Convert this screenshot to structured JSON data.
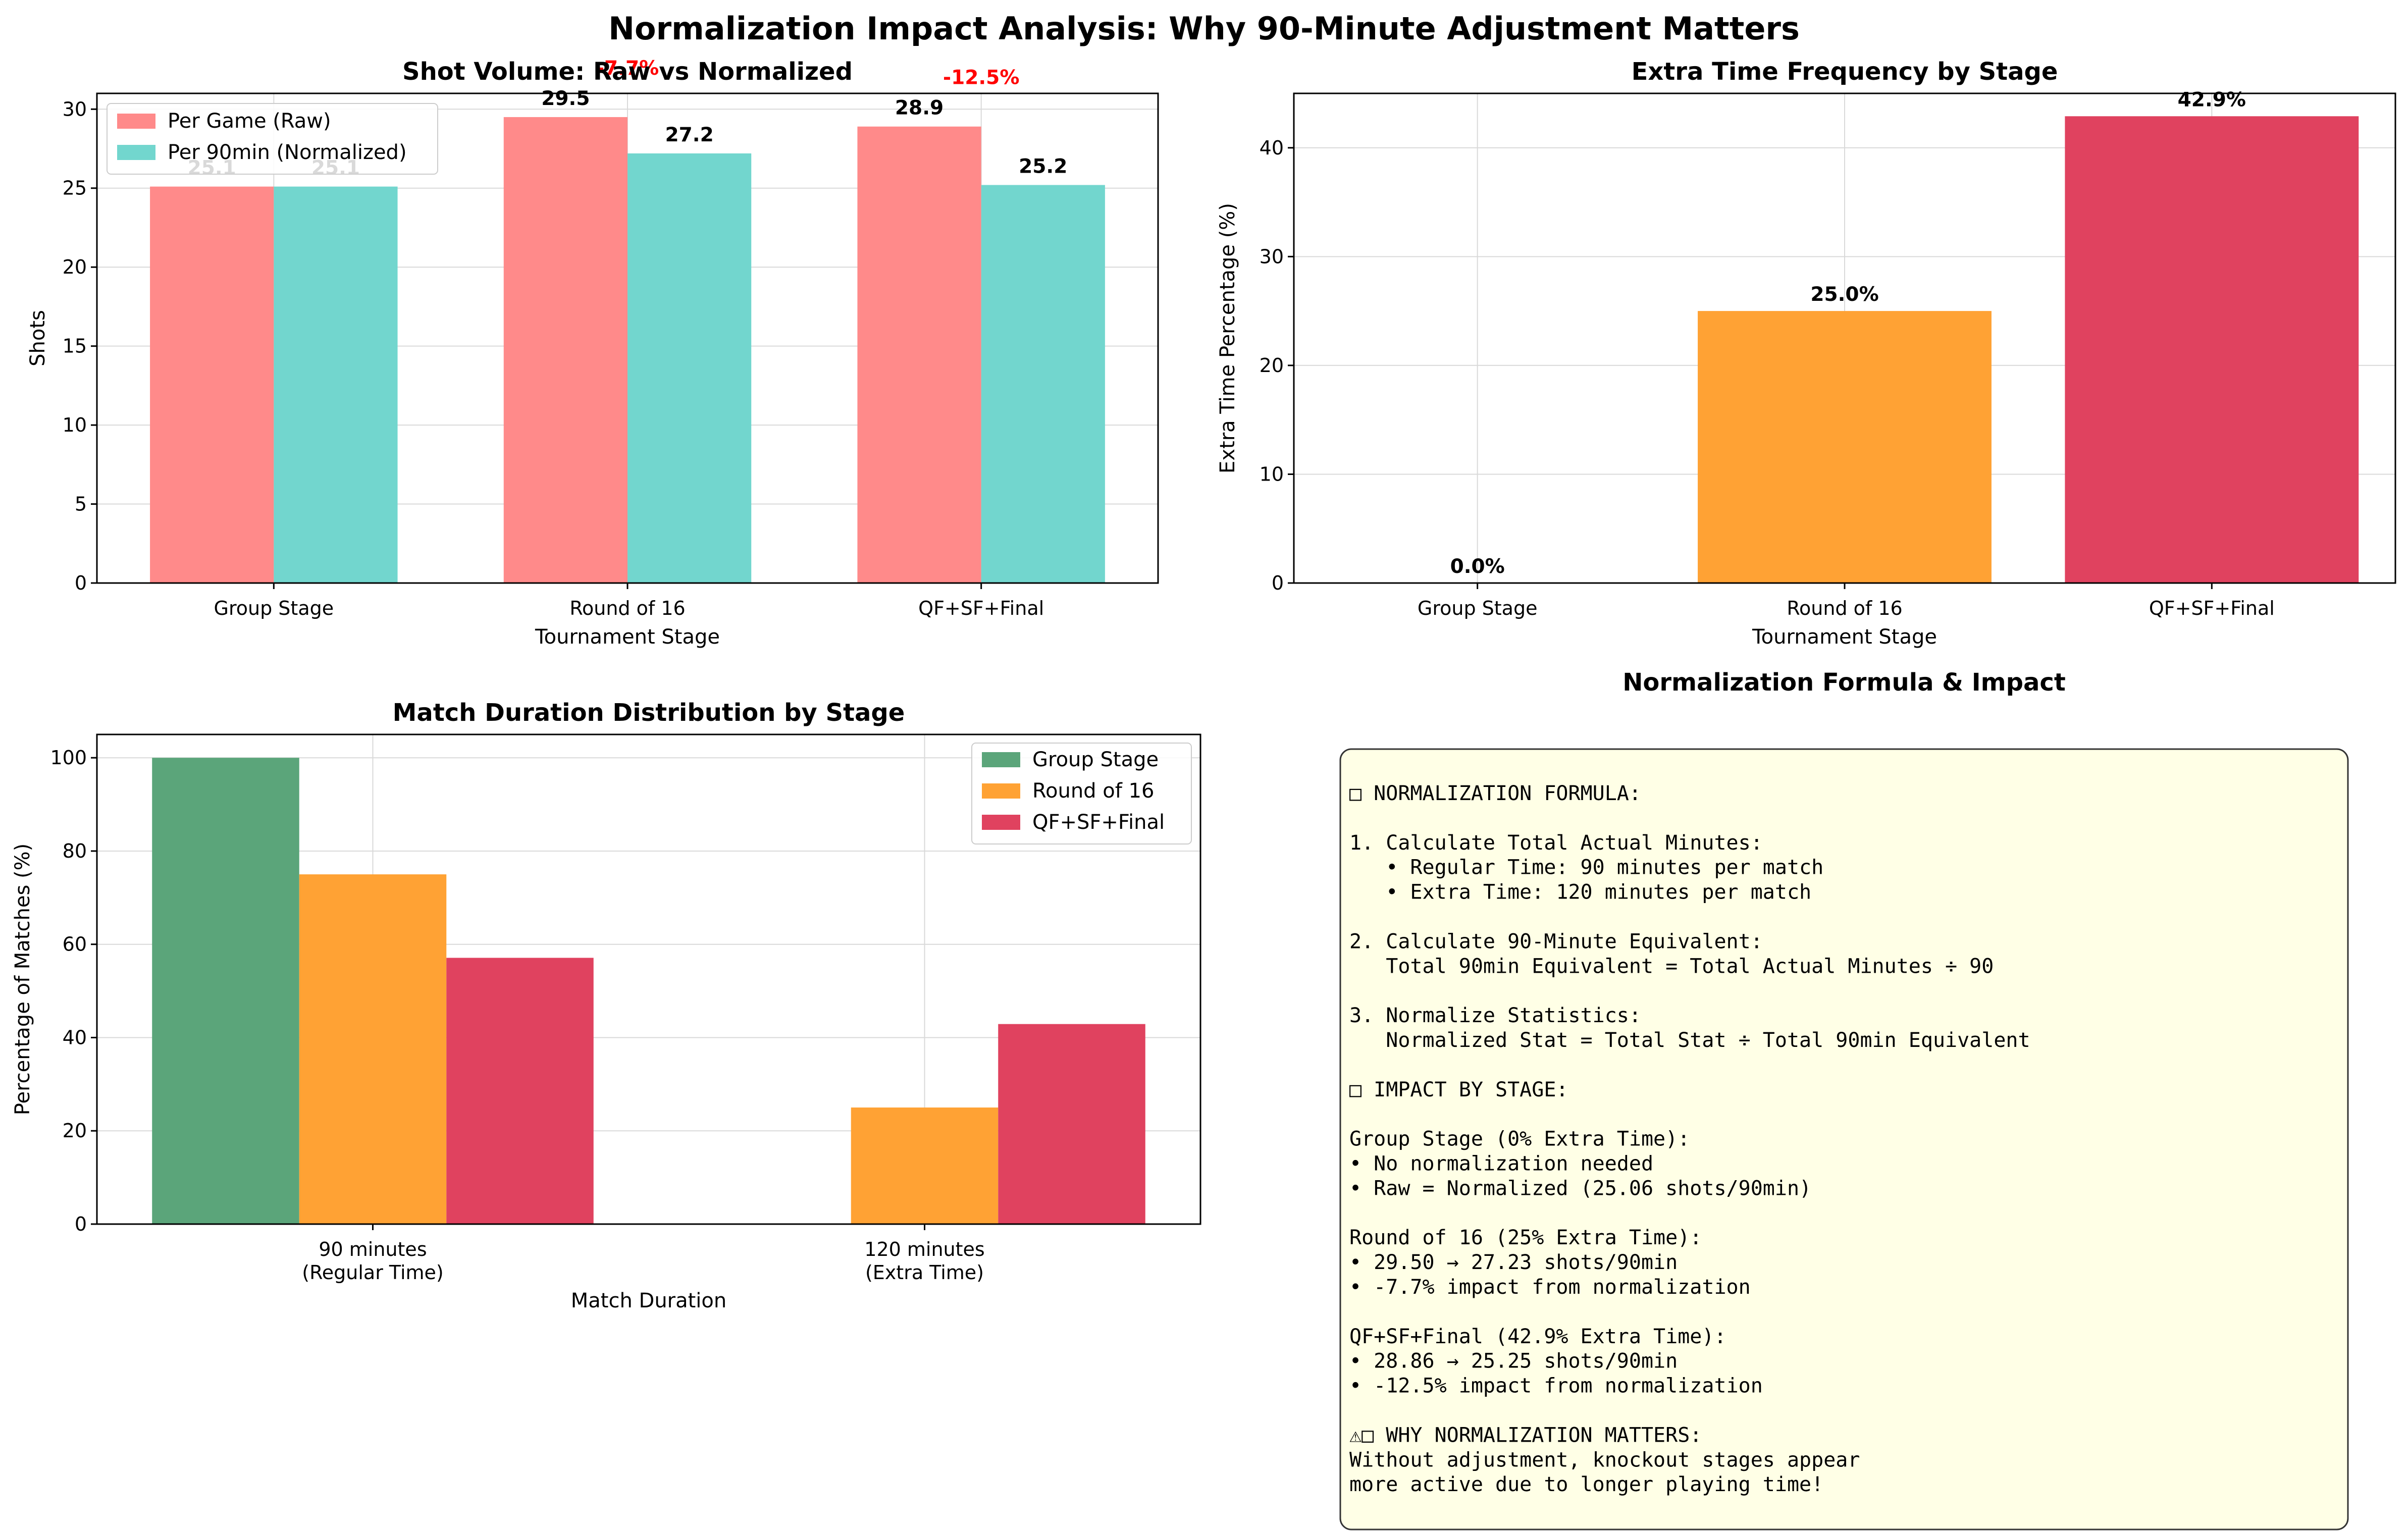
{
  "title": "Normalization Impact Analysis: Why 90-Minute Adjustment Matters",
  "chart_data": [
    {
      "type": "bar",
      "title": "Shot Volume: Raw vs Normalized",
      "xlabel": "Tournament Stage",
      "ylabel": "Shots",
      "categories": [
        "Group Stage",
        "Round of 16",
        "QF+SF+Final"
      ],
      "series": [
        {
          "name": "Per Game (Raw)",
          "values": [
            25.1,
            29.5,
            28.9
          ],
          "labels": [
            "25.1",
            "29.5",
            "28.9"
          ],
          "color": "#ff8a8a"
        },
        {
          "name": "Per 90min (Normalized)",
          "values": [
            25.1,
            27.2,
            25.2
          ],
          "labels": [
            "25.1",
            "27.2",
            "25.2"
          ],
          "color": "#72d6ce"
        }
      ],
      "annotations": [
        "",
        "-7.7%",
        "-12.5%"
      ],
      "annotation_color": "#ff0000",
      "ylim": [
        0,
        31
      ],
      "yticks": [
        0,
        5,
        10,
        15,
        20,
        25,
        30
      ],
      "grid": true,
      "legend": "top-left"
    },
    {
      "type": "bar",
      "title": "Extra Time Frequency by Stage",
      "xlabel": "Tournament Stage",
      "ylabel": "Extra Time Percentage (%)",
      "categories": [
        "Group Stage",
        "Round of 16",
        "QF+SF+Final"
      ],
      "values": [
        0.0,
        25.0,
        42.9
      ],
      "labels": [
        "0.0%",
        "25.0%",
        "42.9%"
      ],
      "colors": [
        "#5ba57a",
        "#ffa234",
        "#e0425f"
      ],
      "ylim": [
        0,
        45
      ],
      "yticks": [
        0,
        10,
        20,
        30,
        40
      ],
      "grid": true
    },
    {
      "type": "bar",
      "title": "Match Duration Distribution by Stage",
      "xlabel": "Match Duration",
      "ylabel": "Percentage of Matches (%)",
      "categories": [
        "90 minutes\n(Regular Time)",
        "120 minutes\n(Extra Time)"
      ],
      "series": [
        {
          "name": "Group Stage",
          "values": [
            100,
            0
          ],
          "color": "#5ba57a"
        },
        {
          "name": "Round of 16",
          "values": [
            75,
            25
          ],
          "color": "#ffa234"
        },
        {
          "name": "QF+SF+Final",
          "values": [
            57.1,
            42.9
          ],
          "color": "#e0425f"
        }
      ],
      "ylim": [
        0,
        105
      ],
      "yticks": [
        0,
        20,
        40,
        60,
        80,
        100
      ],
      "grid": true,
      "legend": "top-right"
    }
  ],
  "formula_panel": {
    "title": "Normalization Formula & Impact",
    "lines": [
      "□ NORMALIZATION FORMULA:",
      "",
      "1. Calculate Total Actual Minutes:",
      "   • Regular Time: 90 minutes per match",
      "   • Extra Time: 120 minutes per match",
      "",
      "2. Calculate 90-Minute Equivalent:",
      "   Total 90min Equivalent = Total Actual Minutes ÷ 90",
      "",
      "3. Normalize Statistics:",
      "   Normalized Stat = Total Stat ÷ Total 90min Equivalent",
      "",
      "□ IMPACT BY STAGE:",
      "",
      "Group Stage (0% Extra Time):",
      "• No normalization needed",
      "• Raw = Normalized (25.06 shots/90min)",
      "",
      "Round of 16 (25% Extra Time):",
      "• 29.50 → 27.23 shots/90min",
      "• -7.7% impact from normalization",
      "",
      "QF+SF+Final (42.9% Extra Time):",
      "• 28.86 → 25.25 shots/90min",
      "• -12.5% impact from normalization",
      "",
      "⚠□ WHY NORMALIZATION MATTERS:",
      "Without adjustment, knockout stages appear",
      "more active due to longer playing time!"
    ],
    "background": "#ffffe6"
  }
}
